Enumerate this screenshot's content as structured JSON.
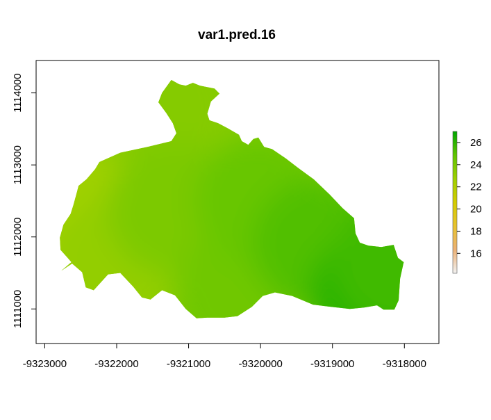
{
  "title": "var1.pred.16",
  "map": {
    "type": "raster",
    "x_range": [
      -9323120,
      -9317520
    ],
    "y_range": [
      1110520,
      1114450
    ],
    "x_ticks": [
      {
        "value": -9323000,
        "label": "-9323000"
      },
      {
        "value": -9322000,
        "label": "-9322000"
      },
      {
        "value": -9321000,
        "label": "-9321000"
      },
      {
        "value": -9320000,
        "label": "-9320000"
      },
      {
        "value": -9319000,
        "label": "-9319000"
      },
      {
        "value": -9318000,
        "label": "-9318000"
      }
    ],
    "y_ticks": [
      {
        "value": 1111000,
        "label": "1111000"
      },
      {
        "value": 1112000,
        "label": "1112000"
      },
      {
        "value": 1113000,
        "label": "1113000"
      },
      {
        "value": 1114000,
        "label": "1114000"
      }
    ],
    "value_range": [
      14.2,
      27.0
    ],
    "outline": [
      [
        -9322770,
        1111530
      ],
      [
        -9322620,
        1111630
      ],
      [
        -9322480,
        1111510
      ],
      [
        -9322430,
        1111300
      ],
      [
        -9322320,
        1111260
      ],
      [
        -9322120,
        1111480
      ],
      [
        -9321950,
        1111500
      ],
      [
        -9321770,
        1111310
      ],
      [
        -9321650,
        1111160
      ],
      [
        -9321530,
        1111130
      ],
      [
        -9321370,
        1111260
      ],
      [
        -9321190,
        1111190
      ],
      [
        -9321040,
        1111000
      ],
      [
        -9320890,
        1110870
      ],
      [
        -9320740,
        1110880
      ],
      [
        -9320500,
        1110880
      ],
      [
        -9320320,
        1110900
      ],
      [
        -9320120,
        1111030
      ],
      [
        -9319970,
        1111180
      ],
      [
        -9319800,
        1111230
      ],
      [
        -9319560,
        1111180
      ],
      [
        -9319270,
        1111060
      ],
      [
        -9319020,
        1111030
      ],
      [
        -9318760,
        1111000
      ],
      [
        -9318560,
        1111020
      ],
      [
        -9318380,
        1111050
      ],
      [
        -9318290,
        1110990
      ],
      [
        -9318140,
        1110990
      ],
      [
        -9318080,
        1111120
      ],
      [
        -9318060,
        1111420
      ],
      [
        -9318010,
        1111650
      ],
      [
        -9318090,
        1111710
      ],
      [
        -9318150,
        1111890
      ],
      [
        -9318320,
        1111860
      ],
      [
        -9318500,
        1111880
      ],
      [
        -9318620,
        1111920
      ],
      [
        -9318680,
        1112050
      ],
      [
        -9318700,
        1112260
      ],
      [
        -9318860,
        1112400
      ],
      [
        -9319040,
        1112590
      ],
      [
        -9319260,
        1112800
      ],
      [
        -9319480,
        1112960
      ],
      [
        -9319650,
        1113090
      ],
      [
        -9319840,
        1113220
      ],
      [
        -9319950,
        1113250
      ],
      [
        -9320030,
        1113380
      ],
      [
        -9320100,
        1113360
      ],
      [
        -9320170,
        1113280
      ],
      [
        -9320260,
        1113330
      ],
      [
        -9320300,
        1113420
      ],
      [
        -9320460,
        1113510
      ],
      [
        -9320590,
        1113580
      ],
      [
        -9320710,
        1113620
      ],
      [
        -9320740,
        1113710
      ],
      [
        -9320690,
        1113880
      ],
      [
        -9320570,
        1113990
      ],
      [
        -9320640,
        1114060
      ],
      [
        -9320840,
        1114100
      ],
      [
        -9320940,
        1114140
      ],
      [
        -9321040,
        1114100
      ],
      [
        -9321130,
        1114120
      ],
      [
        -9321240,
        1114180
      ],
      [
        -9321370,
        1114000
      ],
      [
        -9321420,
        1113870
      ],
      [
        -9321310,
        1113720
      ],
      [
        -9321220,
        1113580
      ],
      [
        -9321170,
        1113440
      ],
      [
        -9321240,
        1113330
      ],
      [
        -9321570,
        1113250
      ],
      [
        -9321950,
        1113170
      ],
      [
        -9322240,
        1113040
      ],
      [
        -9322300,
        1112940
      ],
      [
        -9322420,
        1112800
      ],
      [
        -9322530,
        1112710
      ],
      [
        -9322550,
        1112630
      ],
      [
        -9322600,
        1112450
      ],
      [
        -9322640,
        1112320
      ],
      [
        -9322740,
        1112170
      ],
      [
        -9322790,
        1111990
      ],
      [
        -9322780,
        1111820
      ],
      [
        -9322690,
        1111720
      ],
      [
        -9322630,
        1111650
      ]
    ],
    "value_stops": [
      {
        "x": -9322780,
        "y": 1111850,
        "v": 21.9
      },
      {
        "x": -9322400,
        "y": 1112300,
        "v": 22.7
      },
      {
        "x": -9322000,
        "y": 1111600,
        "v": 23.1
      },
      {
        "x": -9321300,
        "y": 1113800,
        "v": 23.6
      },
      {
        "x": -9321200,
        "y": 1112400,
        "v": 23.9
      },
      {
        "x": -9320300,
        "y": 1111200,
        "v": 24.3
      },
      {
        "x": -9320000,
        "y": 1112500,
        "v": 24.6
      },
      {
        "x": -9319200,
        "y": 1111900,
        "v": 25.2
      },
      {
        "x": -9318400,
        "y": 1111200,
        "v": 26.1
      },
      {
        "x": -9318100,
        "y": 1111650,
        "v": 25.6
      }
    ]
  },
  "legend": {
    "min": 14.2,
    "max": 27.0,
    "ticks": [
      {
        "value": 16,
        "label": "16"
      },
      {
        "value": 18,
        "label": "18"
      },
      {
        "value": 20,
        "label": "20"
      },
      {
        "value": 22,
        "label": "22"
      },
      {
        "value": 24,
        "label": "24"
      },
      {
        "value": 26,
        "label": "26"
      }
    ],
    "colors": [
      "#f2f2f2",
      "#ecb176",
      "#e8c32e",
      "#d4cc00",
      "#9ed000",
      "#60c400",
      "#00a600"
    ]
  }
}
